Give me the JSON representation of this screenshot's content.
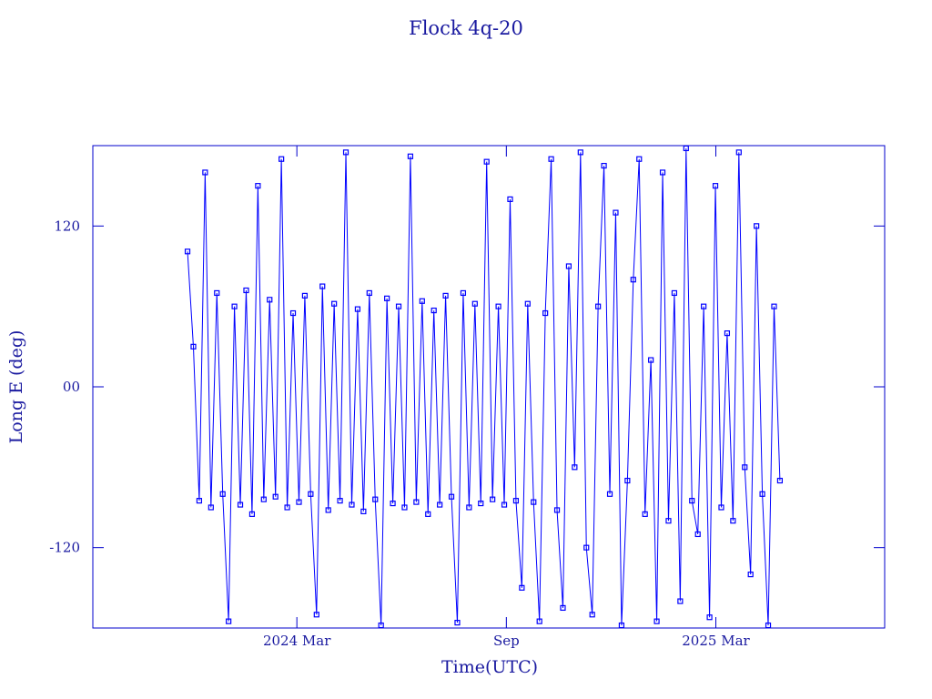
{
  "chart_data": {
    "type": "line",
    "title": "Flock 4q-20",
    "xlabel": "Time(UTC)",
    "ylabel": "Long E (deg)",
    "color": "#0000ff",
    "markers": true,
    "xlim": [
      2023.68,
      2025.57
    ],
    "xticks": [
      {
        "value": 2024.167,
        "label": "2024 Mar"
      },
      {
        "value": 2024.667,
        "label": "Sep"
      },
      {
        "value": 2025.167,
        "label": "2025 Mar"
      }
    ],
    "ylim": [
      -180,
      180
    ],
    "yticks": [
      -120,
      {
        "value": 0,
        "label": "00"
      },
      120
    ],
    "x": [
      2023.906,
      2023.92,
      2023.934,
      2023.948,
      2023.962,
      2023.976,
      2023.99,
      2024.004,
      2024.018,
      2024.032,
      2024.046,
      2024.06,
      2024.074,
      2024.088,
      2024.102,
      2024.116,
      2024.13,
      2024.144,
      2024.158,
      2024.172,
      2024.186,
      2024.2,
      2024.214,
      2024.228,
      2024.242,
      2024.256,
      2024.27,
      2024.284,
      2024.298,
      2024.312,
      2024.326,
      2024.34,
      2024.354,
      2024.368,
      2024.382,
      2024.396,
      2024.41,
      2024.424,
      2024.438,
      2024.452,
      2024.466,
      2024.48,
      2024.494,
      2024.508,
      2024.522,
      2024.536,
      2024.55,
      2024.564,
      2024.578,
      2024.592,
      2024.606,
      2024.62,
      2024.634,
      2024.648,
      2024.662,
      2024.676,
      2024.69,
      2024.704,
      2024.718,
      2024.732,
      2024.746,
      2024.76,
      2024.774,
      2024.788,
      2024.802,
      2024.816,
      2024.83,
      2024.844,
      2024.858,
      2024.872,
      2024.886,
      2024.9,
      2024.914,
      2024.928,
      2024.942,
      2024.956,
      2024.97,
      2024.984,
      2024.998,
      2025.012,
      2025.026,
      2025.04,
      2025.054,
      2025.068,
      2025.082,
      2025.096,
      2025.11,
      2025.124,
      2025.138,
      2025.152,
      2025.166,
      2025.18,
      2025.194,
      2025.208,
      2025.222,
      2025.236,
      2025.25,
      2025.264,
      2025.278,
      2025.292,
      2025.306,
      2025.32
    ],
    "values": [
      101,
      30,
      -85,
      160,
      -90,
      70,
      -80,
      -175,
      60,
      -88,
      72,
      -95,
      150,
      -84,
      65,
      -82,
      170,
      -90,
      55,
      -86,
      68,
      -80,
      -170,
      75,
      -92,
      62,
      -85,
      175,
      -88,
      58,
      -93,
      70,
      -84,
      -178,
      66,
      -87,
      60,
      -90,
      172,
      -86,
      64,
      -95,
      57,
      -88,
      68,
      -82,
      -176,
      70,
      -90,
      62,
      -87,
      168,
      -84,
      60,
      -88,
      140,
      -85,
      -150,
      62,
      -86,
      -175,
      55,
      170,
      -92,
      -165,
      90,
      -60,
      175,
      -120,
      -170,
      60,
      165,
      -80,
      130,
      -178,
      -70,
      80,
      170,
      -95,
      20,
      -175,
      160,
      -100,
      70,
      -160,
      178,
      -85,
      -110,
      60,
      -172,
      150,
      -90,
      40,
      -100,
      175,
      -60,
      -140,
      120,
      -80,
      -178,
      60,
      -70
    ]
  }
}
